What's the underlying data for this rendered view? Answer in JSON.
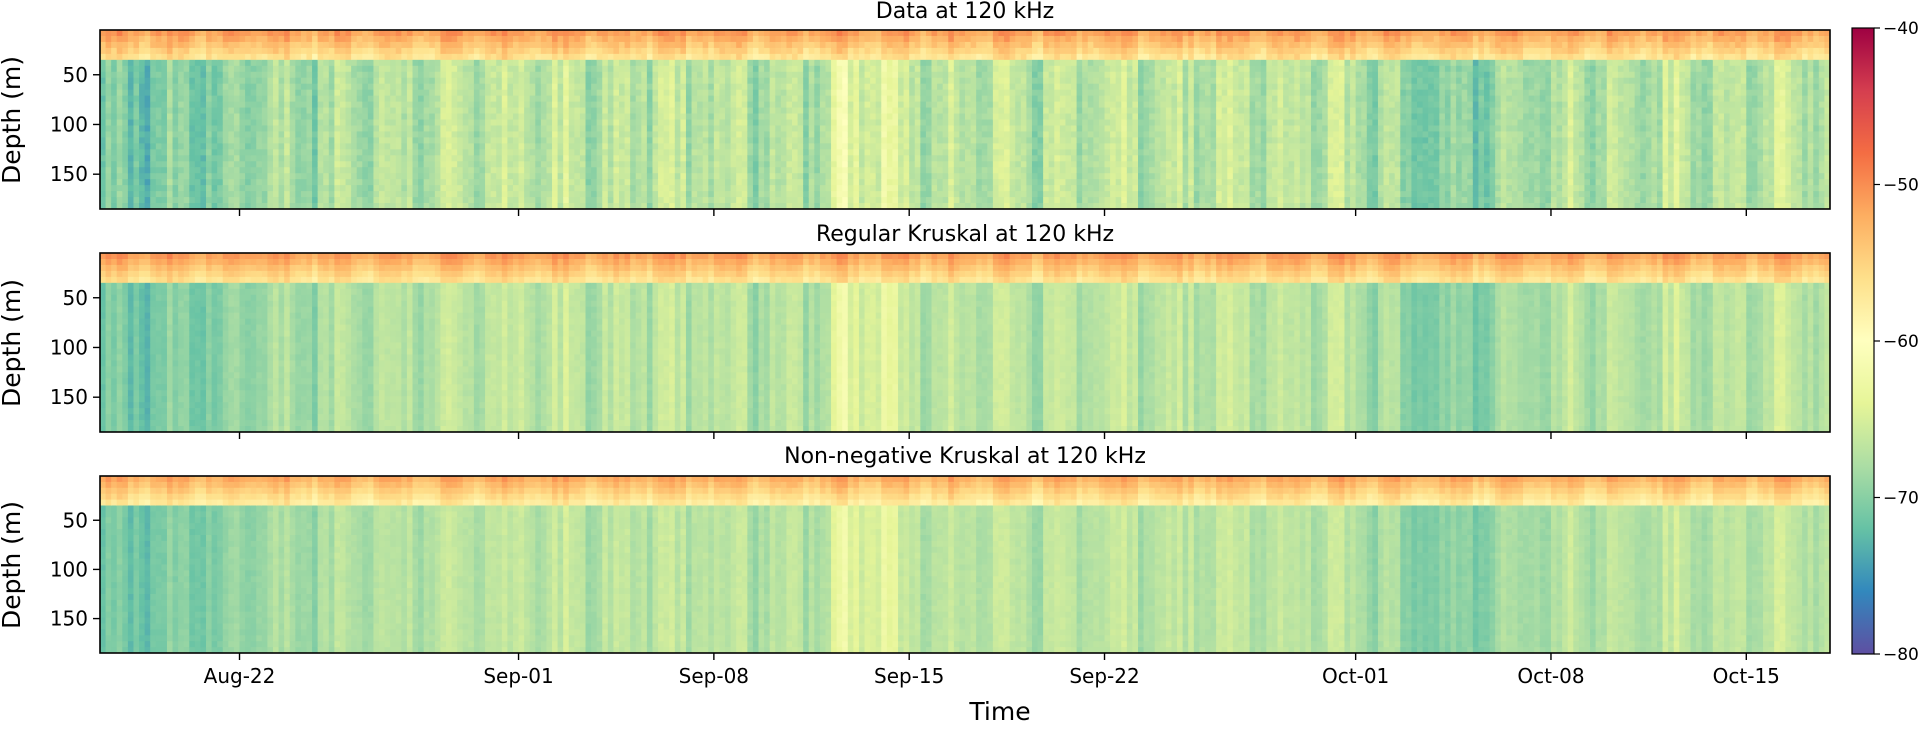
{
  "colormap_stops": [
    "#5e4fa2",
    "#3288bd",
    "#66c2a5",
    "#abdda4",
    "#e6f598",
    "#ffffbf",
    "#fee08b",
    "#fdae61",
    "#f46d43",
    "#d53e4f",
    "#9e0142"
  ],
  "frame_color": "#000000",
  "chart_data": {
    "type": "heatmap",
    "xlabel": "Time",
    "ylabel": "Depth (m)",
    "x_ticks": [
      "Aug-22",
      "Sep-01",
      "Sep-08",
      "Sep-15",
      "Sep-22",
      "Oct-01",
      "Oct-08",
      "Oct-15"
    ],
    "x_tick_dates": [
      "2018-08-22",
      "2018-09-01",
      "2018-09-08",
      "2018-09-15",
      "2018-09-22",
      "2018-10-01",
      "2018-10-08",
      "2018-10-15"
    ],
    "x_range": [
      "2018-08-17",
      "2018-10-18"
    ],
    "y_ticks": [
      50,
      100,
      150
    ],
    "y_range": [
      5,
      185
    ],
    "y_inverted": true,
    "colorbar": {
      "ticks": [
        -40,
        -50,
        -60,
        -70,
        -80
      ],
      "range": [
        -80,
        -40
      ]
    },
    "panels": [
      {
        "title": "Data at 120 kHz",
        "surface_value": -51,
        "deep_value": -67,
        "pattern": "observed"
      },
      {
        "title": "Regular Kruskal at 120 kHz",
        "surface_value": -51,
        "deep_value": -67,
        "pattern": "regular-fit"
      },
      {
        "title": "Non-negative Kruskal at 120 kHz",
        "surface_value": -52,
        "deep_value": -67,
        "pattern": "nonnegative-fit"
      }
    ]
  }
}
